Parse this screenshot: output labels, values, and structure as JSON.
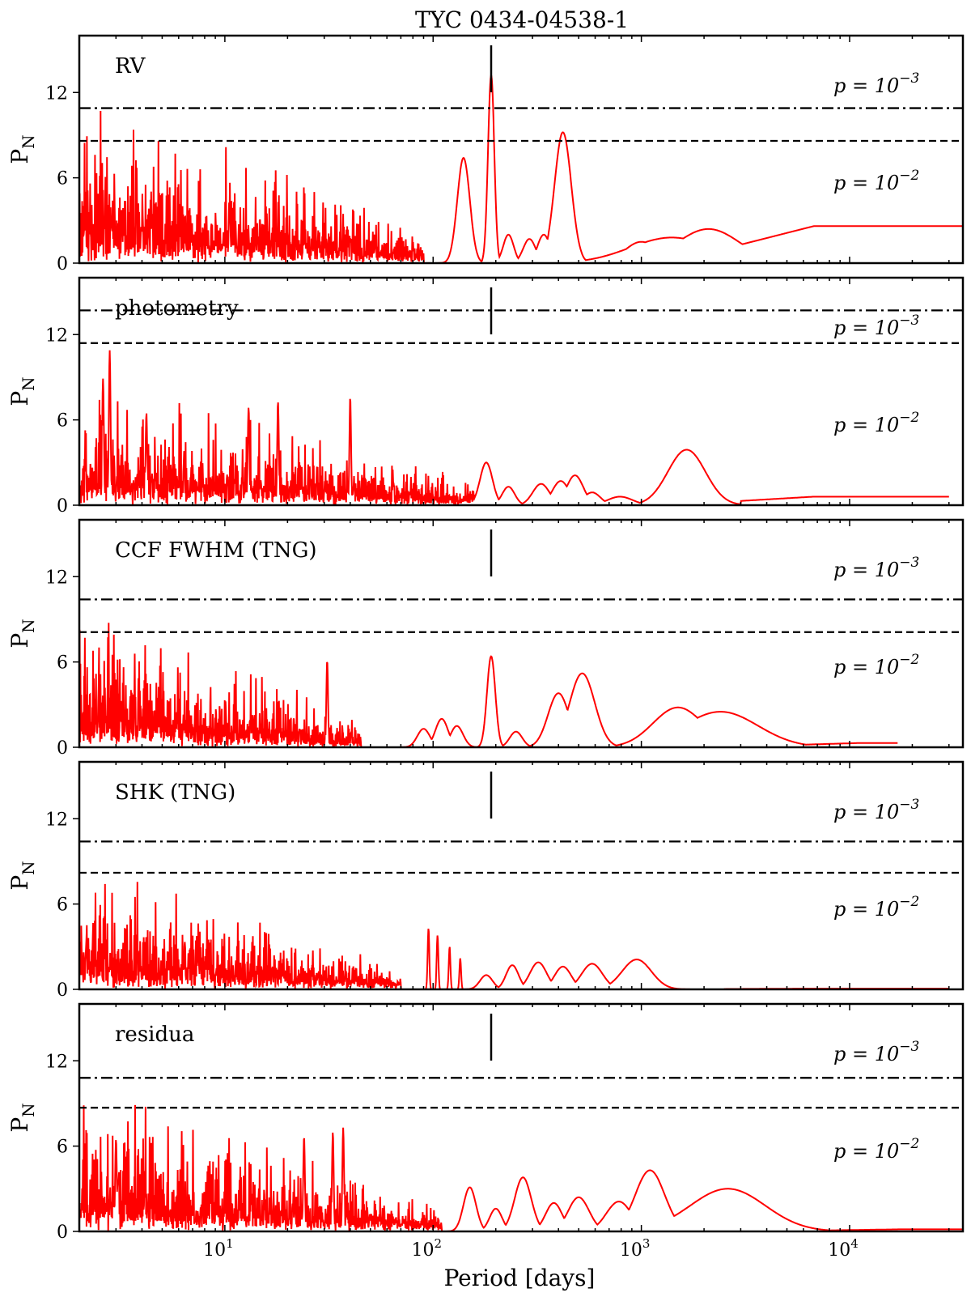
{
  "figure": {
    "title": "TYC 0434-04538-1",
    "xlabel": "Period [days]",
    "ylabel_main": "P",
    "ylabel_sub": "N",
    "sig_label_prefix": "p = 10",
    "colors": {
      "series": "#ff0000",
      "axes": "#000000"
    }
  },
  "chart_data": [
    {
      "type": "line",
      "label": "RV",
      "xscale": "log",
      "xlim": [
        2,
        35000
      ],
      "ylim": [
        0,
        16
      ],
      "yticks": [
        0,
        6,
        12
      ],
      "xticks": [
        {
          "base": "10",
          "exp": "1"
        },
        {
          "base": "10",
          "exp": "2"
        },
        {
          "base": "10",
          "exp": "3"
        },
        {
          "base": "10",
          "exp": "4"
        }
      ],
      "fap": [
        {
          "level": "−3",
          "value": 10.9,
          "style": "dash-dot"
        },
        {
          "level": "−2",
          "value": 8.6,
          "style": "dashed"
        }
      ],
      "marker_period": 190,
      "noise_max": 6.5,
      "noise_end": 90,
      "series": {
        "name": "periodogram",
        "peaks": [
          [
            140,
            7.4,
            0.03
          ],
          [
            150,
            2.8,
            0.02
          ],
          [
            190,
            13.2,
            0.015
          ],
          [
            230,
            2,
            0.025
          ],
          [
            290,
            1.7,
            0.03
          ],
          [
            340,
            2,
            0.03
          ],
          [
            420,
            9.2,
            0.04
          ],
          [
            1000,
            1.5,
            0.08
          ],
          [
            1400,
            1.8,
            0.2
          ],
          [
            2100,
            2.4,
            0.15
          ]
        ],
        "tail": 2.6,
        "tail_start": 3000,
        "x_end": 35000
      }
    },
    {
      "type": "line",
      "label": "photometry",
      "xscale": "log",
      "xlim": [
        2,
        35000
      ],
      "ylim": [
        0,
        16
      ],
      "yticks": [
        0,
        6,
        12
      ],
      "xticks": [
        {
          "base": "10",
          "exp": "1"
        },
        {
          "base": "10",
          "exp": "2"
        },
        {
          "base": "10",
          "exp": "3"
        },
        {
          "base": "10",
          "exp": "4"
        }
      ],
      "fap": [
        {
          "level": "−3",
          "value": 13.7,
          "style": "dash-dot"
        },
        {
          "level": "−2",
          "value": 11.4,
          "style": "dashed"
        }
      ],
      "marker_period": 190,
      "noise_max": 5.0,
      "noise_end": 160,
      "spikes": [
        [
          2.8,
          10.9
        ],
        [
          2.6,
          8.9
        ],
        [
          40,
          7.6
        ],
        [
          18,
          7.3
        ],
        [
          13,
          6.9
        ],
        [
          4.2,
          6.5
        ]
      ],
      "series": {
        "name": "periodogram",
        "peaks": [
          [
            180,
            3,
            0.03
          ],
          [
            230,
            1.3,
            0.03
          ],
          [
            330,
            1.5,
            0.04
          ],
          [
            410,
            1.7,
            0.04
          ],
          [
            480,
            2.1,
            0.04
          ],
          [
            580,
            0.9,
            0.04
          ],
          [
            790,
            0.6,
            0.06
          ],
          [
            1650,
            3.9,
            0.09
          ]
        ],
        "tail": 0.6,
        "tail_start": 3000,
        "x_end": 30000
      }
    },
    {
      "type": "line",
      "label": "CCF FWHM (TNG)",
      "xscale": "log",
      "xlim": [
        2,
        35000
      ],
      "ylim": [
        0,
        16
      ],
      "yticks": [
        0,
        6,
        12
      ],
      "xticks": [
        {
          "base": "10",
          "exp": "1"
        },
        {
          "base": "10",
          "exp": "2"
        },
        {
          "base": "10",
          "exp": "3"
        },
        {
          "base": "10",
          "exp": "4"
        }
      ],
      "fap": [
        {
          "level": "−3",
          "value": 10.4,
          "style": "dash-dot"
        },
        {
          "level": "−2",
          "value": 8.1,
          "style": "dashed"
        }
      ],
      "marker_period": 190,
      "noise_max": 5.6,
      "noise_end": 45,
      "spikes": [
        [
          31,
          6.1
        ]
      ],
      "series": {
        "name": "periodogram",
        "peaks": [
          [
            90,
            1.3,
            0.03
          ],
          [
            110,
            2,
            0.03
          ],
          [
            130,
            1.5,
            0.03
          ],
          [
            190,
            6.4,
            0.02
          ],
          [
            250,
            1.1,
            0.03
          ],
          [
            400,
            3.8,
            0.05
          ],
          [
            520,
            5.2,
            0.06
          ],
          [
            1500,
            2.8,
            0.12
          ],
          [
            2400,
            2.5,
            0.18
          ]
        ],
        "tail": 0.3,
        "tail_start": 5000,
        "x_end": 17000
      }
    },
    {
      "type": "line",
      "label": "SHK (TNG)",
      "xscale": "log",
      "xlim": [
        2,
        35000
      ],
      "ylim": [
        0,
        16
      ],
      "yticks": [
        0,
        6,
        12
      ],
      "xticks": [
        {
          "base": "10",
          "exp": "1"
        },
        {
          "base": "10",
          "exp": "2"
        },
        {
          "base": "10",
          "exp": "3"
        },
        {
          "base": "10",
          "exp": "4"
        }
      ],
      "fap": [
        {
          "level": "−3",
          "value": 10.4,
          "style": "dash-dot"
        },
        {
          "level": "−2",
          "value": 8.2,
          "style": "dashed"
        }
      ],
      "marker_period": 190,
      "noise_max": 4.8,
      "noise_end": 70,
      "spikes": [
        [
          95,
          4.3
        ],
        [
          105,
          3.8
        ],
        [
          120,
          3
        ],
        [
          135,
          2.2
        ]
      ],
      "series": {
        "name": "periodogram",
        "peaks": [
          [
            180,
            1,
            0.03
          ],
          [
            240,
            1.7,
            0.03
          ],
          [
            320,
            1.9,
            0.04
          ],
          [
            420,
            1.6,
            0.04
          ],
          [
            580,
            1.8,
            0.05
          ],
          [
            950,
            2.1,
            0.07
          ]
        ],
        "tail": 0.05,
        "tail_start": 2500,
        "x_end": 30000
      }
    },
    {
      "type": "line",
      "label": "residua",
      "xscale": "log",
      "xlim": [
        2,
        35000
      ],
      "ylim": [
        0,
        16
      ],
      "yticks": [
        0,
        6,
        12
      ],
      "xticks": [
        {
          "base": "10",
          "exp": "1"
        },
        {
          "base": "10",
          "exp": "2"
        },
        {
          "base": "10",
          "exp": "3"
        },
        {
          "base": "10",
          "exp": "4"
        }
      ],
      "fap": [
        {
          "level": "−3",
          "value": 10.8,
          "style": "dash-dot"
        },
        {
          "level": "−2",
          "value": 8.7,
          "style": "dashed"
        }
      ],
      "marker_period": 190,
      "noise_max": 5.5,
      "noise_end": 110,
      "spikes": [
        [
          37,
          7.3
        ],
        [
          33,
          7
        ],
        [
          24,
          6.7
        ],
        [
          3,
          6.5
        ]
      ],
      "series": {
        "name": "periodogram",
        "peaks": [
          [
            150,
            3.1,
            0.03
          ],
          [
            200,
            1.6,
            0.03
          ],
          [
            270,
            3.8,
            0.04
          ],
          [
            380,
            2,
            0.04
          ],
          [
            500,
            2.4,
            0.05
          ],
          [
            780,
            2.1,
            0.06
          ],
          [
            1100,
            4.3,
            0.07
          ],
          [
            2600,
            3,
            0.18
          ]
        ],
        "tail": 0.15,
        "tail_start": 8000,
        "x_end": 35000
      }
    }
  ]
}
